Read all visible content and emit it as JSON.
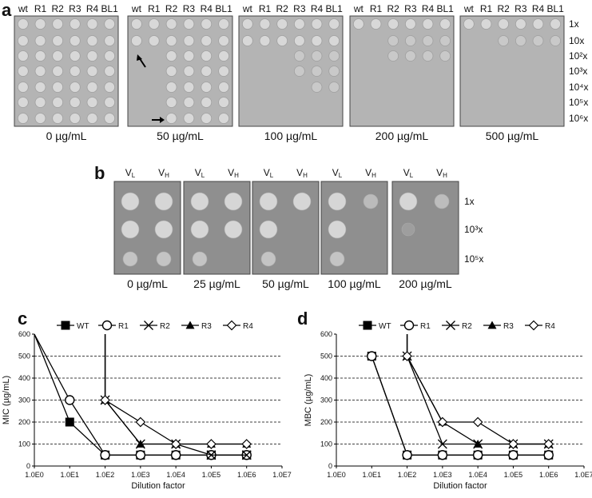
{
  "panel_a": {
    "letter": "a",
    "column_labels": [
      "wt",
      "R1",
      "R2",
      "R3",
      "R4",
      "BL1"
    ],
    "row_labels": [
      "1x",
      "10x",
      "10²x",
      "10³x",
      "10⁴x",
      "10⁵x",
      "10⁶x"
    ],
    "plates": [
      {
        "label": "0 µg/mL",
        "growth_rows": [
          7,
          7,
          7,
          7,
          7,
          7
        ]
      },
      {
        "label": "50 µg/mL",
        "growth_rows": [
          2,
          2,
          7,
          7,
          7,
          7
        ]
      },
      {
        "label": "100 µg/mL",
        "growth_rows": [
          2,
          2,
          2,
          4,
          5,
          5
        ]
      },
      {
        "label": "200 µg/mL",
        "growth_rows": [
          1,
          1,
          3,
          3,
          3,
          3
        ]
      },
      {
        "label": "500 µg/mL",
        "growth_rows": [
          1,
          1,
          2,
          2,
          2,
          2
        ]
      }
    ]
  },
  "panel_b": {
    "letter": "b",
    "column_labels": [
      "VL",
      "VH"
    ],
    "row_labels": [
      "1x",
      "10³x",
      "10⁵x"
    ],
    "plates": [
      {
        "label": "0 µg/mL"
      },
      {
        "label": "25 µg/mL"
      },
      {
        "label": "50 µg/mL"
      },
      {
        "label": "100 µg/mL"
      },
      {
        "label": "200 µg/mL"
      }
    ]
  },
  "chart_data": [
    {
      "panel": "c",
      "type": "line",
      "ylabel": "MIC (µg/mL)",
      "xlabel": "Dilution factor",
      "xscale": "log",
      "xtick_labels": [
        "1.0E0",
        "1.0E1",
        "1.0E2",
        "1.0E3",
        "1.0E4",
        "1.0E5",
        "1.0E6",
        "1.0E7"
      ],
      "ylim": [
        0,
        600
      ],
      "yticks": [
        0,
        100,
        200,
        300,
        400,
        500,
        600
      ],
      "grid": "horizontal dashed",
      "legend": "top",
      "series": [
        {
          "name": "WT",
          "marker": "square-filled",
          "x": [
            1,
            10,
            100,
            1000,
            10000,
            100000,
            1000000
          ],
          "y": [
            600,
            200,
            50,
            50,
            50,
            50,
            50
          ]
        },
        {
          "name": "R1",
          "marker": "circle-open",
          "x": [
            1,
            10,
            100,
            1000,
            10000,
            100000,
            1000000
          ],
          "y": [
            600,
            300,
            50,
            50,
            50,
            50,
            50
          ]
        },
        {
          "name": "R2",
          "marker": "x",
          "x": [
            100,
            1000,
            10000,
            100000,
            1000000
          ],
          "y": [
            300,
            100,
            100,
            50,
            50
          ]
        },
        {
          "name": "R3",
          "marker": "triangle-filled",
          "x": [
            100,
            1000,
            10000,
            100000,
            1000000
          ],
          "y": [
            300,
            100,
            100,
            100,
            100
          ]
        },
        {
          "name": "R4",
          "marker": "diamond-open",
          "x": [
            100,
            1000,
            10000,
            100000,
            1000000
          ],
          "y": [
            300,
            200,
            100,
            100,
            100
          ]
        }
      ]
    },
    {
      "panel": "d",
      "type": "line",
      "ylabel": "MBC (µg/mL)",
      "xlabel": "Dilution factor",
      "xscale": "log",
      "xtick_labels": [
        "1.0E0",
        "1.0E1",
        "1.0E2",
        "1.0E3",
        "1.0E4",
        "1.0E5",
        "1.0E6",
        "1.0E7"
      ],
      "ylim": [
        0,
        600
      ],
      "yticks": [
        0,
        100,
        200,
        300,
        400,
        500,
        600
      ],
      "grid": "horizontal dashed",
      "legend": "top",
      "series": [
        {
          "name": "WT",
          "marker": "square-filled",
          "x": [
            10,
            100,
            1000,
            10000,
            100000,
            1000000
          ],
          "y": [
            500,
            50,
            50,
            50,
            50,
            50
          ]
        },
        {
          "name": "R1",
          "marker": "circle-open",
          "x": [
            10,
            100,
            1000,
            10000,
            100000,
            1000000
          ],
          "y": [
            500,
            50,
            50,
            50,
            50,
            50
          ]
        },
        {
          "name": "R2",
          "marker": "x",
          "x": [
            100,
            1000,
            10000,
            100000,
            1000000
          ],
          "y": [
            500,
            100,
            100,
            100,
            100
          ]
        },
        {
          "name": "R3",
          "marker": "triangle-filled",
          "x": [
            100,
            1000,
            10000,
            100000,
            1000000
          ],
          "y": [
            500,
            200,
            100,
            100,
            100
          ]
        },
        {
          "name": "R4",
          "marker": "diamond-open",
          "x": [
            100,
            1000,
            10000,
            100000,
            1000000
          ],
          "y": [
            500,
            200,
            200,
            100,
            100
          ]
        }
      ]
    }
  ]
}
